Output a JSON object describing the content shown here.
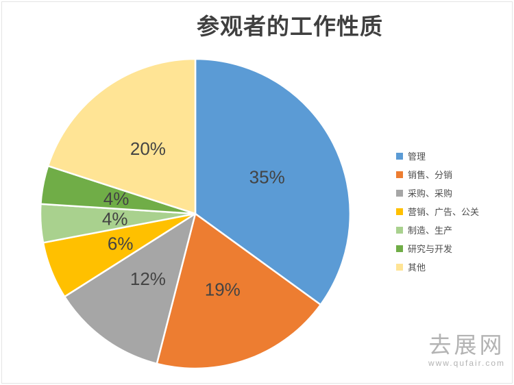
{
  "chart_data": {
    "type": "pie",
    "title": "参观者的工作性质",
    "legend_position": "right",
    "start_angle_deg": 0,
    "direction": "clockwise",
    "slices": [
      {
        "label": "管理",
        "value": 35,
        "display": "35%",
        "color": "#5B9BD5"
      },
      {
        "label": "销售、分销",
        "value": 19,
        "display": "19%",
        "color": "#ED7D31"
      },
      {
        "label": "采购、采购",
        "value": 12,
        "display": "12%",
        "color": "#A6A6A6"
      },
      {
        "label": "营销、广告、公关",
        "value": 6,
        "display": "6%",
        "color": "#FFC000"
      },
      {
        "label": "制造、生产",
        "value": 4,
        "display": "4%",
        "color": "#A9D18E"
      },
      {
        "label": "研究与开发",
        "value": 4,
        "display": "4%",
        "color": "#70AD47"
      },
      {
        "label": "其他",
        "value": 20,
        "display": "20%",
        "color": "#FFE495"
      }
    ]
  },
  "watermark": {
    "name": "去展网",
    "url": "www.qufair.com"
  }
}
